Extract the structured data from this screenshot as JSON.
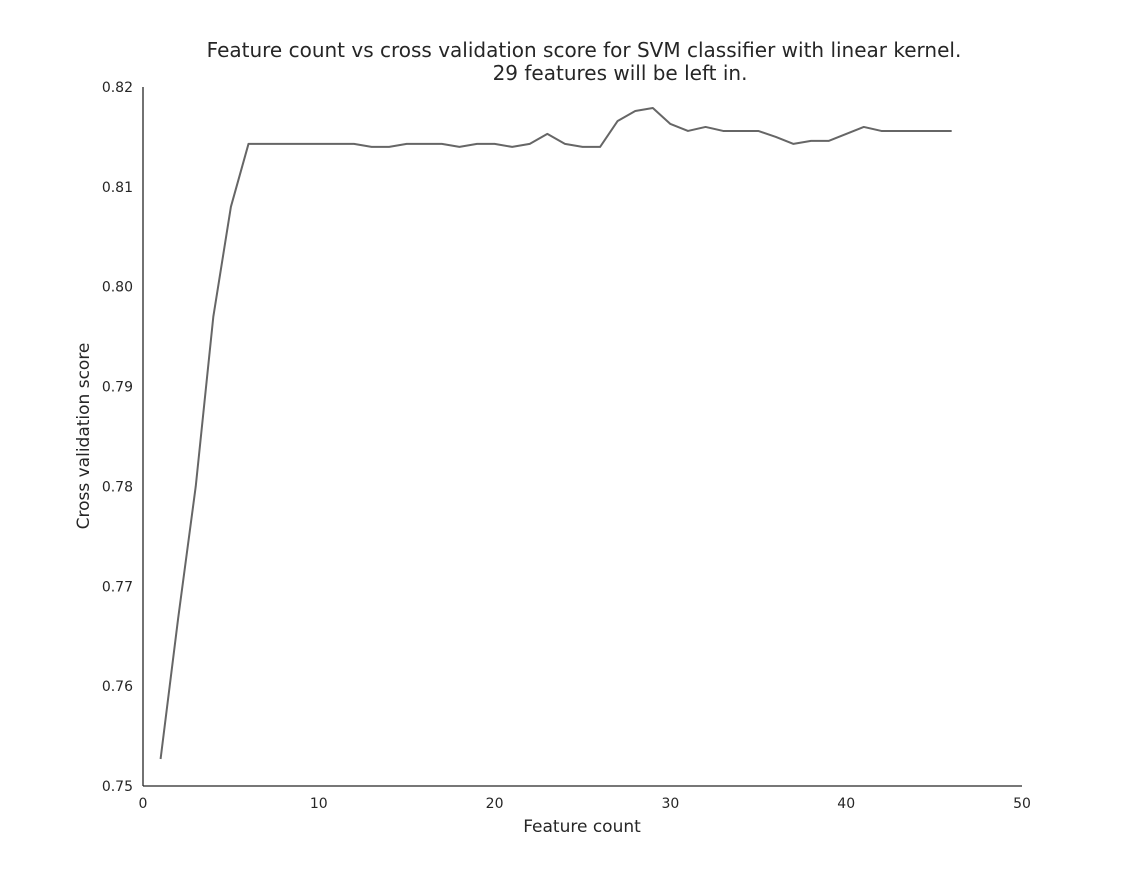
{
  "chart_data": {
    "type": "line",
    "title": "Feature count vs cross validation score for SVM classifier with linear kernel.",
    "subtitle": "29 features will be left in.",
    "xlabel": "Feature count",
    "ylabel": "Cross validation score",
    "xlim": [
      0,
      50
    ],
    "ylim": [
      0.75,
      0.82
    ],
    "xticks": [
      "0",
      "10",
      "20",
      "30",
      "40",
      "50"
    ],
    "yticks": [
      "0.75",
      "0.76",
      "0.77",
      "0.78",
      "0.79",
      "0.80",
      "0.81",
      "0.82"
    ],
    "grid": false,
    "line_color": "#666666",
    "series": [
      {
        "x": [
          1,
          2,
          3,
          4,
          5,
          6,
          7,
          8,
          9,
          10,
          11,
          12,
          13,
          14,
          15,
          16,
          17,
          18,
          19,
          20,
          21,
          22,
          23,
          24,
          25,
          26,
          27,
          28,
          29,
          30,
          31,
          32,
          33,
          34,
          35,
          36,
          37,
          38,
          39,
          40,
          41,
          42,
          43,
          44,
          45,
          46
        ],
        "values": [
          0.7527,
          0.7668,
          0.78,
          0.797,
          0.808,
          0.8143,
          0.8143,
          0.8143,
          0.8143,
          0.8143,
          0.8143,
          0.8143,
          0.814,
          0.814,
          0.8143,
          0.8143,
          0.8143,
          0.814,
          0.8143,
          0.8143,
          0.814,
          0.8143,
          0.8153,
          0.8143,
          0.814,
          0.814,
          0.8166,
          0.8176,
          0.8179,
          0.8163,
          0.8156,
          0.816,
          0.8156,
          0.8156,
          0.8156,
          0.815,
          0.8143,
          0.8146,
          0.8146,
          0.8153,
          0.816,
          0.8156,
          0.8156,
          0.8156,
          0.8156,
          0.8156
        ]
      }
    ]
  }
}
